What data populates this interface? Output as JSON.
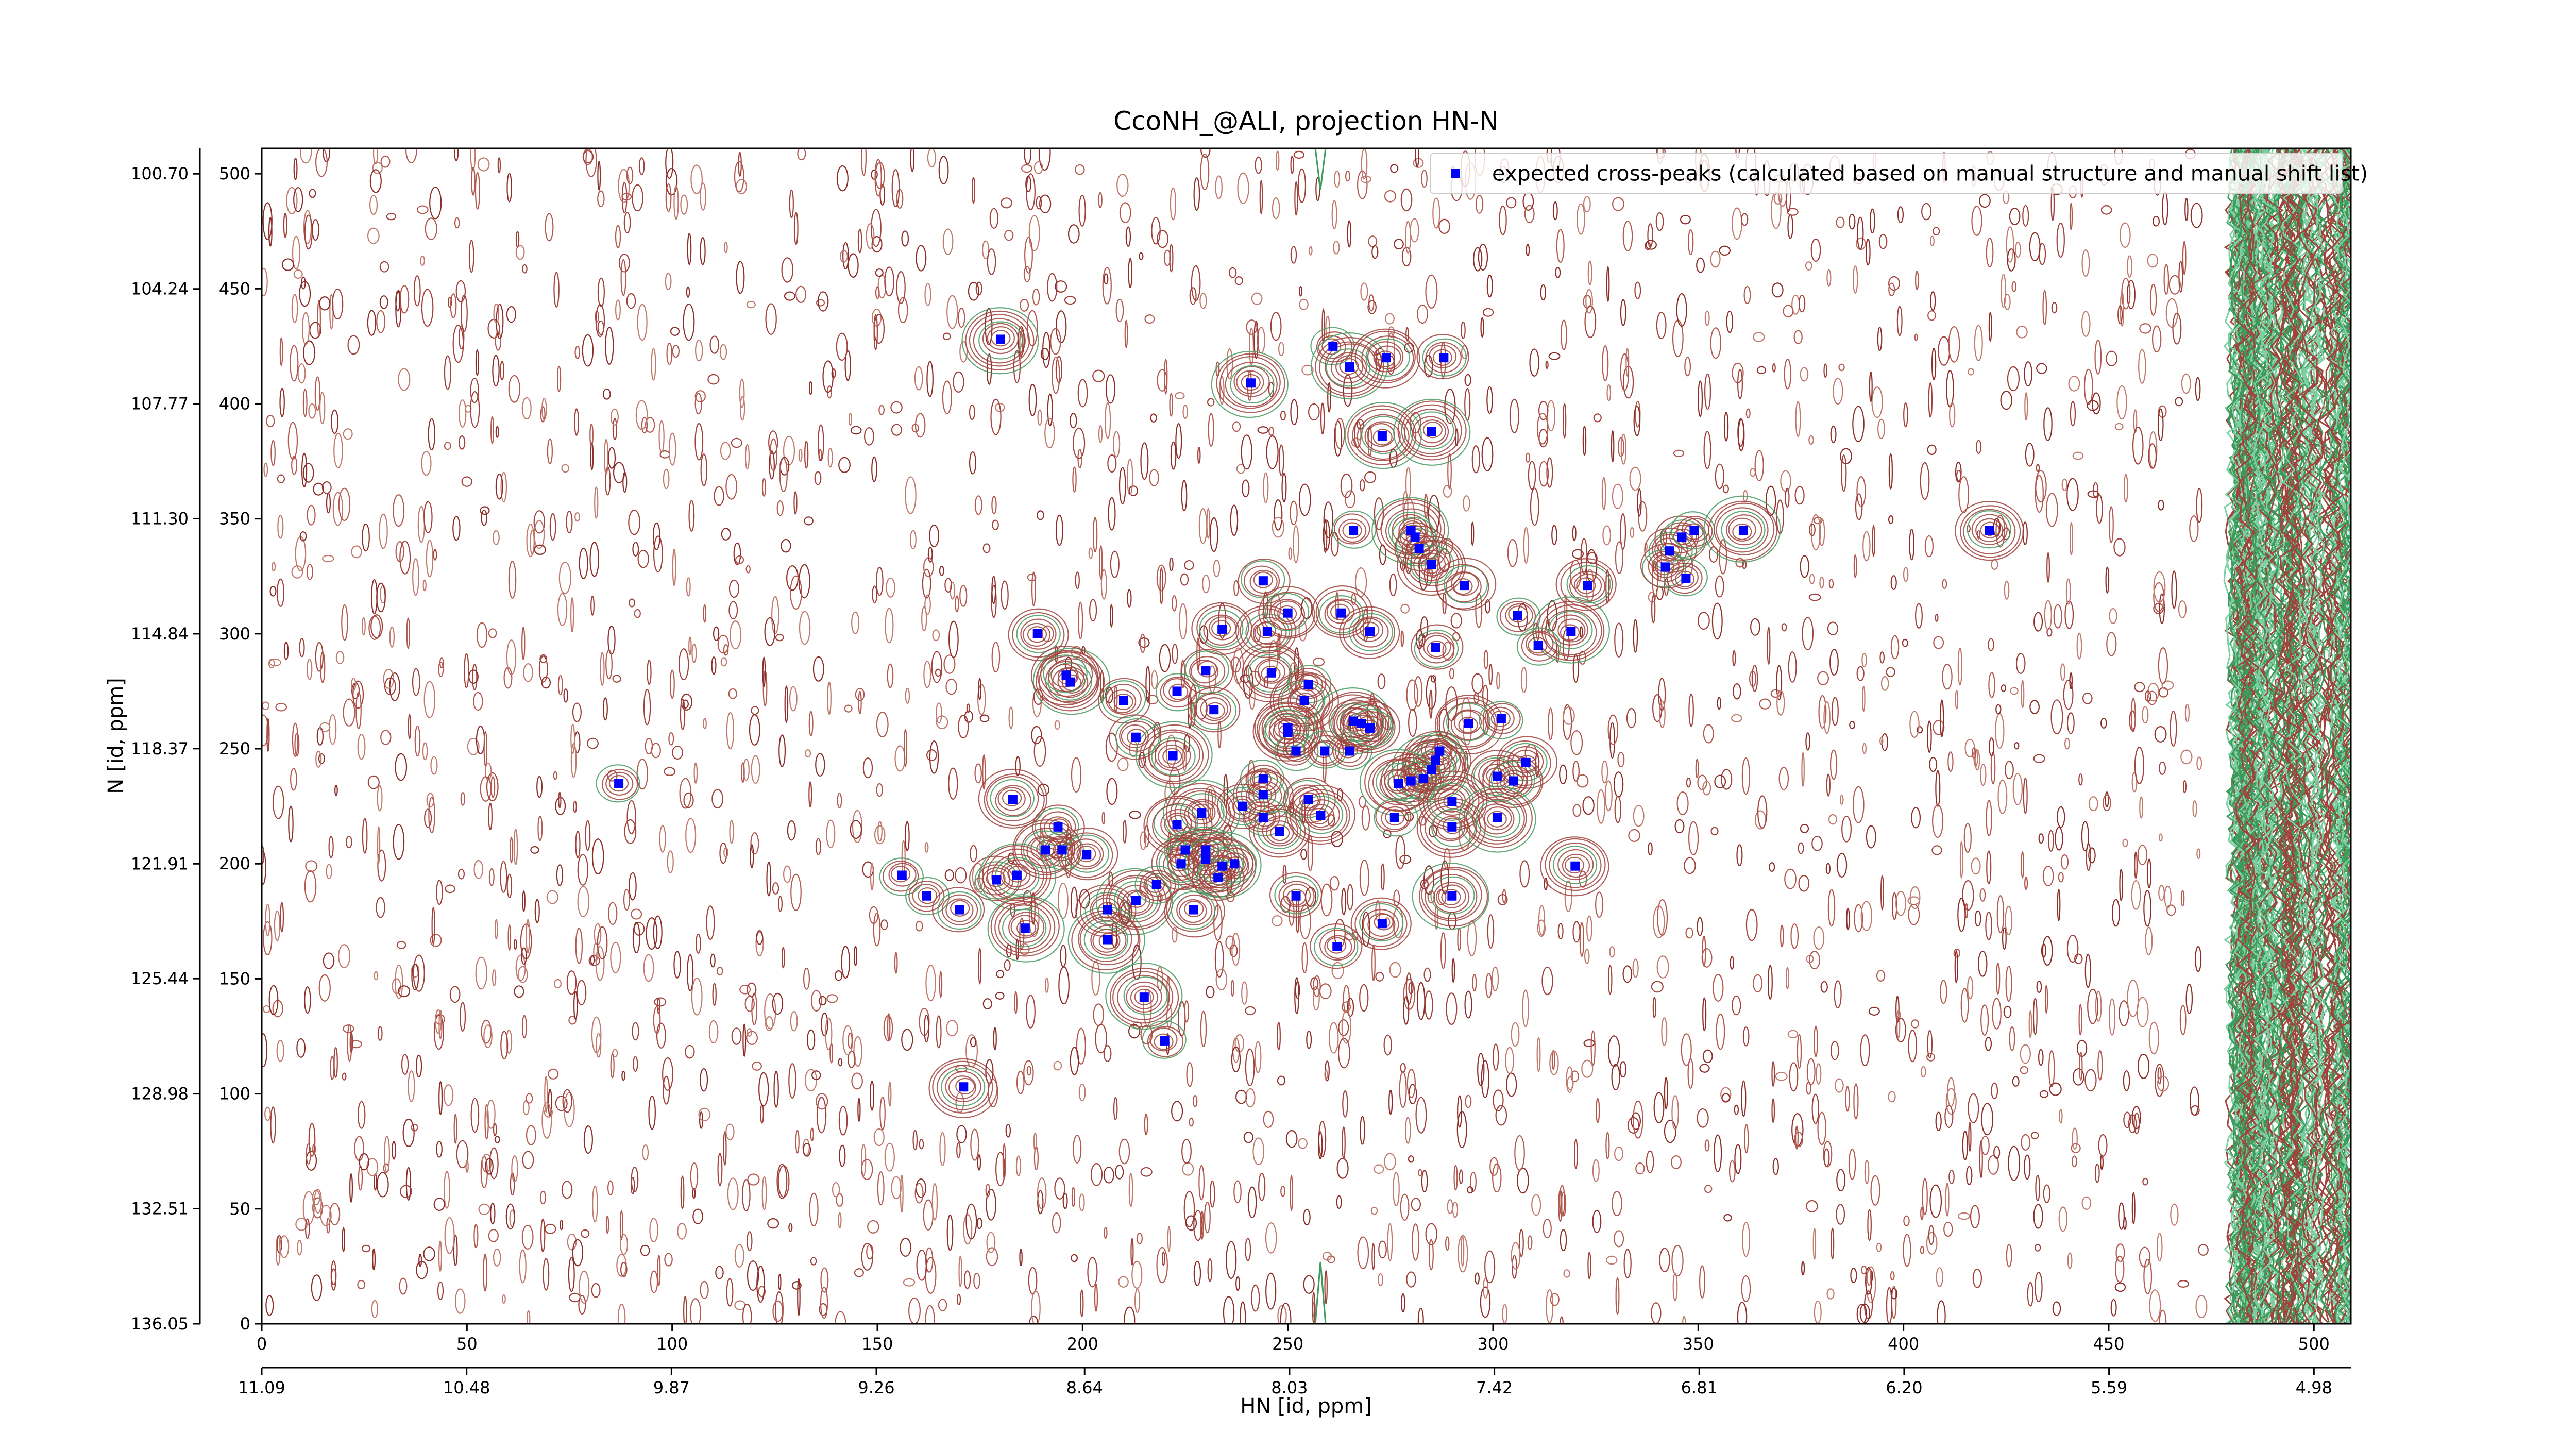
{
  "chart_data": {
    "type": "scatter",
    "title": "CcoNH_@ALI, projection HN-N",
    "xlabel": "HN [id, ppm]",
    "ylabel": "N [id, ppm]",
    "xlim": [
      0,
      509
    ],
    "ylim": [
      0,
      511
    ],
    "xticks": [
      0,
      50,
      100,
      150,
      200,
      250,
      300,
      350,
      400,
      450,
      500
    ],
    "yticks": [
      0,
      50,
      100,
      150,
      200,
      250,
      300,
      350,
      400,
      450,
      500
    ],
    "x2lim": [
      11.09,
      4.87
    ],
    "x2ticks": [
      11.09,
      10.48,
      9.87,
      9.26,
      8.64,
      8.03,
      7.42,
      6.81,
      {
        "value": 6.2,
        "label": "6.20"
      },
      5.59,
      4.98
    ],
    "y2lim": [
      136.05,
      99.92
    ],
    "y2ticks": [
      {
        "value": 100.7,
        "label": "100.70"
      },
      104.24,
      107.77,
      {
        "value": 111.3,
        "label": "111.30"
      },
      114.84,
      118.37,
      121.91,
      125.44,
      128.98,
      132.51,
      136.05
    ],
    "legend": "upper right",
    "series": [
      {
        "name": "expected cross-peaks (calculated based on manual structure and manual shift list)",
        "color": "#0000ff",
        "x": [
          87,
          180,
          241,
          261,
          265,
          274,
          288,
          273,
          285,
          266,
          280,
          281,
          282,
          285,
          293,
          244,
          323,
          343,
          342,
          346,
          349,
          347,
          361,
          421,
          189,
          234,
          245,
          250,
          263,
          270,
          306,
          319,
          311,
          286,
          197,
          196,
          230,
          246,
          255,
          254,
          223,
          210,
          232,
          213,
          222,
          250,
          250,
          252,
          259,
          265,
          266,
          268,
          270,
          294,
          302,
          308,
          301,
          305,
          287,
          286,
          285,
          283,
          280,
          277,
          276,
          290,
          290,
          301,
          244,
          244,
          244,
          255,
          258,
          248,
          239,
          229,
          223,
          183,
          194,
          191,
          195,
          201,
          225,
          230,
          230,
          224,
          234,
          237,
          233,
          320,
          156,
          162,
          170,
          179,
          184,
          186,
          206,
          213,
          218,
          227,
          252,
          290,
          273,
          206,
          262,
          215,
          220,
          171
        ],
        "values": [
          235,
          428,
          409,
          425,
          416,
          420,
          420,
          386,
          388,
          345,
          345,
          342,
          337,
          330,
          321,
          323,
          321,
          336,
          329,
          342,
          345,
          324,
          345,
          345,
          300,
          302,
          301,
          309,
          309,
          301,
          308,
          301,
          295,
          294,
          279,
          282,
          284,
          283,
          278,
          271,
          275,
          271,
          267,
          255,
          247,
          257,
          259,
          249,
          249,
          249,
          262,
          261,
          259,
          261,
          263,
          244,
          238,
          236,
          249,
          245,
          241,
          237,
          236,
          235,
          220,
          227,
          216,
          220,
          237,
          230,
          220,
          228,
          221,
          214,
          225,
          222,
          217,
          228,
          216,
          206,
          206,
          204,
          206,
          206,
          202,
          200,
          199,
          200,
          194,
          199,
          195,
          186,
          180,
          193,
          195,
          172,
          180,
          184,
          191,
          180,
          186,
          186,
          174,
          167,
          164,
          142,
          123,
          103
        ]
      }
    ]
  }
}
